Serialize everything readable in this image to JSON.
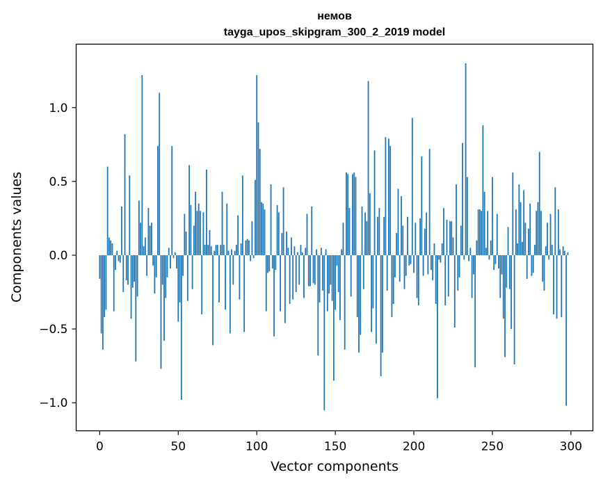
{
  "chart_data": {
    "type": "bar",
    "title_line1": "немов",
    "title_line2": "tayga_upos_skipgram_300_2_2019 model",
    "xlabel": "Vector components",
    "ylabel": "Components values",
    "xlim": [
      -15,
      314
    ],
    "ylim": [
      -1.19,
      1.43
    ],
    "x_ticks": [
      0,
      50,
      100,
      150,
      200,
      250,
      300
    ],
    "x_tick_labels": [
      "0",
      "50",
      "100",
      "150",
      "200",
      "250",
      "300"
    ],
    "y_ticks": [
      -1.0,
      -0.5,
      0.0,
      0.5,
      1.0
    ],
    "y_tick_labels": [
      "−1.0",
      "−0.5",
      "0.0",
      "0.5",
      "1.0"
    ],
    "bar_color": "#1f77b4",
    "values": [
      -0.16,
      -0.53,
      -0.64,
      -0.42,
      -0.37,
      0.6,
      0.12,
      0.1,
      0.08,
      -0.38,
      -0.1,
      0.03,
      -0.04,
      -0.05,
      0.33,
      -0.25,
      0.82,
      -0.17,
      -0.2,
      0.54,
      -0.43,
      -0.22,
      -0.18,
      -0.72,
      -0.28,
      0.37,
      0.22,
      1.22,
      0.06,
      0.12,
      -0.14,
      0.32,
      0.2,
      0.22,
      -0.07,
      -0.26,
      -0.15,
      0.74,
      1.1,
      -0.77,
      -0.2,
      -0.58,
      -0.29,
      -0.15,
      0.05,
      -0.09,
      0.74,
      -0.02,
      0.02,
      -0.09,
      -0.45,
      -0.32,
      -0.98,
      -0.14,
      0.28,
      0.16,
      -0.31,
      0.61,
      0.34,
      -0.23,
      0.2,
      0.43,
      0.3,
      0.35,
      0.3,
      -0.4,
      0.29,
      0.07,
      0.58,
      0.07,
      0.17,
      0.06,
      -0.61,
      0.03,
      0.07,
      0.07,
      -0.32,
      0.07,
      0.43,
      0.07,
      -0.37,
      0.35,
      0.03,
      -0.53,
      0.04,
      -0.2,
      0.03,
      0.07,
      0.27,
      -0.3,
      0.08,
      0.54,
      -0.52,
      0.1,
      0.11,
      0.1,
      -0.04,
      0.23,
      -0.02,
      0.51,
      1.22,
      0.9,
      0.72,
      0.36,
      0.35,
      0.31,
      -0.38,
      -0.12,
      -0.11,
      0.48,
      -0.09,
      -0.55,
      -0.1,
      0.34,
      0.29,
      -0.38,
      0.15,
      0.46,
      -0.46,
      0.16,
      0.05,
      -0.33,
      0.12,
      -0.3,
      0.06,
      -0.25,
      0.02,
      -0.2,
      0.07,
      0.02,
      -0.29,
      0.05,
      0.28,
      -0.21,
      -0.21,
      0.33,
      -0.19,
      -0.2,
      0.04,
      -0.68,
      -0.32,
      0.05,
      -0.24,
      -1.05,
      0.04,
      -0.38,
      -0.26,
      -0.2,
      -0.31,
      -0.85,
      -0.37,
      -0.07,
      -0.25,
      -0.44,
      0.04,
      0.22,
      -0.64,
      0.56,
      0.55,
      0.32,
      -0.28,
      0.55,
      0.56,
      0.53,
      -0.42,
      -0.66,
      -0.54,
      0.33,
      -0.23,
      0.29,
      0.23,
      1.18,
      0.42,
      -0.52,
      -0.36,
      0.71,
      -0.6,
      0.26,
      0.32,
      -0.82,
      -0.66,
      0.26,
      0.8,
      -0.24,
      0.79,
      0.74,
      -0.42,
      -0.33,
      -0.15,
      0.15,
      0.45,
      -0.18,
      0.4,
      0.2,
      -0.23,
      -0.14,
      0.26,
      -0.07,
      -0.06,
      0.93,
      -0.12,
      0.22,
      -0.29,
      -0.34,
      0.25,
      0.67,
      -0.14,
      0.18,
      0.29,
      -0.13,
      0.72,
      -0.1,
      -0.17,
      0.08,
      -0.33,
      -0.97,
      -0.03,
      -0.05,
      0.08,
      0.32,
      -0.34,
      0.24,
      -0.28,
      0.23,
      0.23,
      0.12,
      -0.49,
      0.48,
      -0.24,
      -0.15,
      0.2,
      0.76,
      -0.03,
      1.3,
      0.53,
      -0.04,
      0.05,
      -0.29,
      -0.13,
      -0.76,
      0.1,
      0.31,
      0.31,
      0.3,
      0.88,
      0.43,
      0.05,
      0.3,
      -0.03,
      0.1,
      0.53,
      -0.1,
      -0.06,
      0.28,
      -0.09,
      -0.29,
      -0.13,
      -0.43,
      -0.69,
      -0.22,
      0.19,
      -0.23,
      -0.5,
      0.56,
      -0.74,
      0.31,
      0.08,
      0.48,
      0.36,
      0.09,
      0.44,
      0.22,
      -0.16,
      0.18,
      0.35,
      -0.14,
      -0.12,
      0.07,
      0.3,
      0.36,
      0.7,
      0.3,
      -0.18,
      -0.24,
      0.06,
      0.22,
      -0.03,
      0.28,
      0.07,
      -0.4,
      0.46,
      -0.43,
      0.31,
      0.04,
      -0.42,
      0.06,
      0.03,
      -1.02,
      0.02
    ]
  }
}
